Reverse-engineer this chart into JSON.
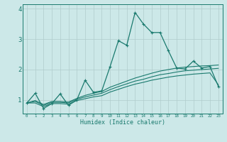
{
  "xlabel": "Humidex (Indice chaleur)",
  "bg_color": "#cce8e8",
  "grid_color": "#b0cccc",
  "line_color": "#1a7a6e",
  "x_values": [
    0,
    1,
    2,
    3,
    4,
    5,
    6,
    7,
    8,
    9,
    10,
    11,
    12,
    13,
    14,
    15,
    16,
    17,
    18,
    19,
    20,
    21,
    22,
    23
  ],
  "line1": [
    0.9,
    1.22,
    0.72,
    0.88,
    1.2,
    0.82,
    1.0,
    1.65,
    1.25,
    1.3,
    2.1,
    2.95,
    2.8,
    3.88,
    3.5,
    3.22,
    3.22,
    2.62,
    2.05,
    2.02,
    2.28,
    2.05,
    2.1,
    1.45
  ],
  "line2": [
    0.9,
    0.98,
    0.85,
    0.95,
    0.95,
    0.93,
    1.05,
    1.15,
    1.22,
    1.28,
    1.42,
    1.52,
    1.62,
    1.72,
    1.8,
    1.88,
    1.95,
    2.0,
    2.05,
    2.08,
    2.1,
    2.12,
    2.13,
    2.15
  ],
  "line3": [
    0.9,
    0.95,
    0.82,
    0.92,
    0.92,
    0.9,
    1.02,
    1.1,
    1.16,
    1.22,
    1.34,
    1.44,
    1.53,
    1.62,
    1.68,
    1.76,
    1.83,
    1.87,
    1.92,
    1.96,
    1.98,
    2.0,
    2.02,
    2.04
  ],
  "line4": [
    0.9,
    0.9,
    0.78,
    0.88,
    0.88,
    0.86,
    0.98,
    1.04,
    1.1,
    1.14,
    1.26,
    1.35,
    1.44,
    1.52,
    1.58,
    1.65,
    1.7,
    1.75,
    1.79,
    1.82,
    1.85,
    1.87,
    1.89,
    1.5
  ],
  "ylim": [
    0.55,
    4.15
  ],
  "xlim": [
    -0.5,
    23.5
  ],
  "yticks": [
    1,
    2,
    3,
    4
  ],
  "xticks": [
    0,
    1,
    2,
    3,
    4,
    5,
    6,
    7,
    8,
    9,
    10,
    11,
    12,
    13,
    14,
    15,
    16,
    17,
    18,
    19,
    20,
    21,
    22,
    23
  ]
}
